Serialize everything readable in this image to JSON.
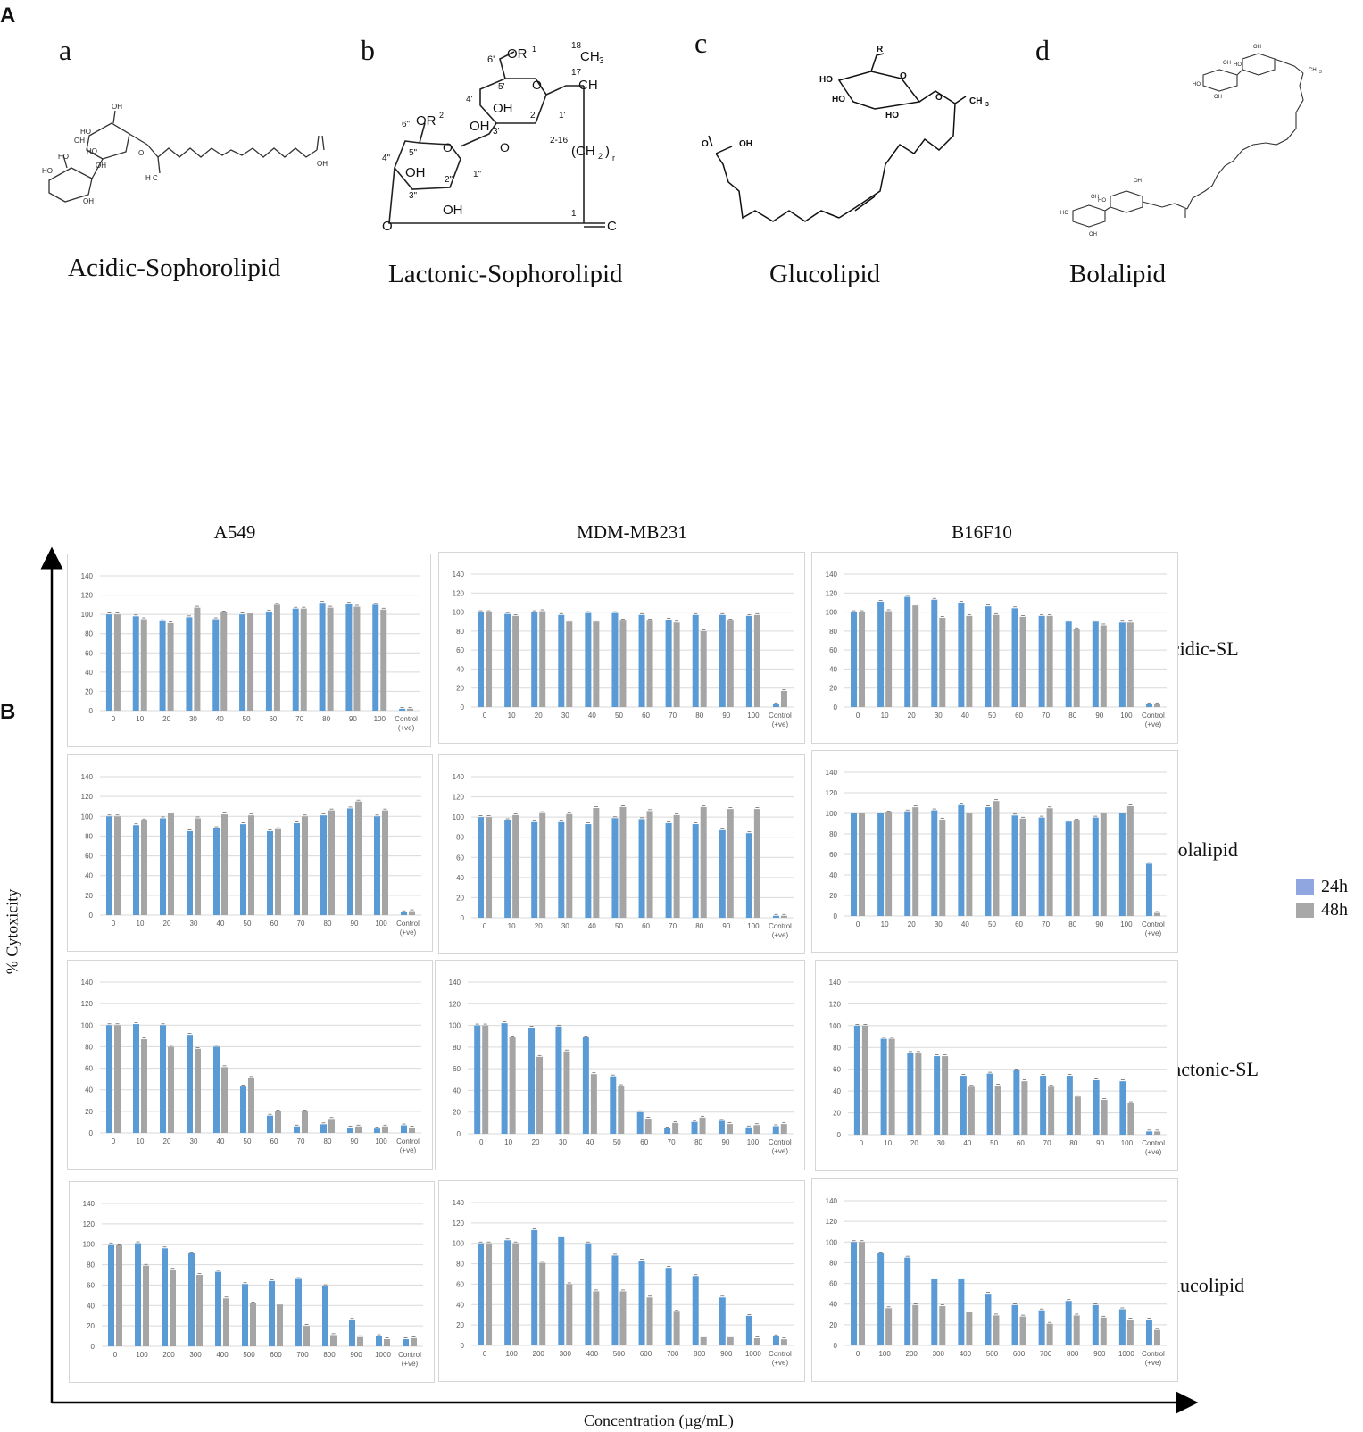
{
  "panel_labels": {
    "a": "A",
    "b": "B"
  },
  "structures": [
    {
      "letter": "a",
      "name": "Acidic-Sophorolipid"
    },
    {
      "letter": "b",
      "name": "Lactonic-Sophorolipid"
    },
    {
      "letter": "c",
      "name": "Glucolipid"
    },
    {
      "letter": "d",
      "name": "Bolalipid"
    }
  ],
  "structure_text": {
    "b_labels": [
      "6'",
      "OR",
      "1",
      "18",
      "CH",
      "3",
      "17",
      "CH",
      "O",
      "5'",
      "4'",
      "OH",
      "OH",
      "3'",
      "2'",
      "1'",
      "6\"",
      "OR",
      "2",
      "2-16",
      "(CH",
      "2",
      ")",
      "r",
      "4\"",
      "5\"",
      "OH",
      "O",
      "3\"",
      "2\"",
      "1\"",
      "OH",
      "O",
      "1",
      "C",
      "O"
    ],
    "c_labels": [
      "R",
      "HO",
      "O",
      "HO",
      "HO",
      "O",
      "CH",
      "3",
      "O",
      "OH"
    ],
    "a_labels": [
      "OH",
      "HO",
      "OH",
      "HO",
      "HO",
      "OH",
      "HO",
      "OH",
      "O",
      "H",
      "C",
      "OH"
    ],
    "d_labels": [
      "OH",
      "OH",
      "HO",
      "HO",
      "OH",
      "CH",
      "3",
      "OH",
      "OH",
      "HO",
      "HO",
      "OH"
    ]
  },
  "column_titles": [
    "A549",
    "MDM-MB231",
    "B16F10"
  ],
  "row_labels": [
    "Acidic-SL",
    "Bolalipid",
    "Lactonic-SL",
    "Glucolipid"
  ],
  "legend": [
    {
      "label": "24h",
      "color": "#8FA6E0"
    },
    {
      "label": "48h",
      "color": "#A8A8A8"
    }
  ],
  "axis_titles": {
    "y": "% Cytoxicity",
    "x": "Concentration (µg/mL)"
  },
  "colors": {
    "bar24": "#5B9BD5",
    "bar48": "#A5A5A5",
    "grid": "#D9D9D9",
    "tick": "#595959"
  },
  "chart_data": [
    {
      "type": "bar",
      "row": "Acidic-SL",
      "column": "A549",
      "title": "",
      "ylim": [
        0,
        140
      ],
      "yticks": [
        0,
        20,
        40,
        60,
        80,
        100,
        120,
        140
      ],
      "categories": [
        "0",
        "10",
        "20",
        "30",
        "40",
        "50",
        "60",
        "70",
        "80",
        "90",
        "100",
        "Control (+ve)"
      ],
      "series": [
        {
          "name": "24h",
          "values": [
            100,
            98,
            93,
            97,
            95,
            100,
            103,
            106,
            112,
            111,
            110,
            2
          ]
        },
        {
          "name": "48h",
          "values": [
            100,
            95,
            91,
            107,
            102,
            101,
            110,
            106,
            107,
            108,
            105,
            2
          ]
        }
      ]
    },
    {
      "type": "bar",
      "row": "Acidic-SL",
      "column": "MDM-MB231",
      "title": "",
      "ylim": [
        0,
        140
      ],
      "yticks": [
        0,
        20,
        40,
        60,
        80,
        100,
        120,
        140
      ],
      "categories": [
        "0",
        "10",
        "20",
        "30",
        "40",
        "50",
        "60",
        "70",
        "80",
        "90",
        "100",
        "Control (+ve)"
      ],
      "series": [
        {
          "name": "24h",
          "values": [
            100,
            98,
            100,
            97,
            99,
            99,
            97,
            92,
            97,
            97,
            96,
            3
          ]
        },
        {
          "name": "48h",
          "values": [
            100,
            96,
            101,
            90,
            90,
            91,
            91,
            89,
            80,
            91,
            97,
            17
          ]
        }
      ]
    },
    {
      "type": "bar",
      "row": "Acidic-SL",
      "column": "B16F10",
      "title": "",
      "ylim": [
        0,
        140
      ],
      "yticks": [
        0,
        20,
        40,
        60,
        80,
        100,
        120,
        140
      ],
      "categories": [
        "0",
        "10",
        "20",
        "30",
        "40",
        "50",
        "60",
        "70",
        "80",
        "90",
        "100",
        "Control (+ve)"
      ],
      "series": [
        {
          "name": "24h",
          "values": [
            100,
            111,
            116,
            113,
            110,
            106,
            104,
            96,
            90,
            90,
            89,
            3
          ]
        },
        {
          "name": "48h",
          "values": [
            100,
            101,
            107,
            94,
            96,
            97,
            95,
            96,
            82,
            86,
            89,
            3
          ]
        }
      ]
    },
    {
      "type": "bar",
      "row": "Bolalipid",
      "column": "A549",
      "title": "",
      "ylim": [
        0,
        140
      ],
      "yticks": [
        0,
        20,
        40,
        60,
        80,
        100,
        120,
        140
      ],
      "categories": [
        "0",
        "10",
        "20",
        "30",
        "40",
        "50",
        "60",
        "70",
        "80",
        "90",
        "100",
        "Control (+ve)"
      ],
      "series": [
        {
          "name": "24h",
          "values": [
            100,
            91,
            98,
            85,
            88,
            92,
            85,
            93,
            101,
            108,
            100,
            3
          ]
        },
        {
          "name": "48h",
          "values": [
            100,
            96,
            103,
            98,
            102,
            101,
            87,
            100,
            106,
            115,
            106,
            4
          ]
        }
      ]
    },
    {
      "type": "bar",
      "row": "Bolalipid",
      "column": "MDM-MB231",
      "title": "",
      "ylim": [
        0,
        140
      ],
      "yticks": [
        0,
        20,
        40,
        60,
        80,
        100,
        120,
        140
      ],
      "categories": [
        "0",
        "10",
        "20",
        "30",
        "40",
        "50",
        "60",
        "70",
        "80",
        "90",
        "100",
        "Control (+ve)"
      ],
      "series": [
        {
          "name": "24h",
          "values": [
            100,
            97,
            95,
            95,
            93,
            99,
            98,
            94,
            93,
            87,
            84,
            2
          ]
        },
        {
          "name": "48h",
          "values": [
            100,
            102,
            104,
            103,
            109,
            110,
            106,
            102,
            110,
            108,
            108,
            2
          ]
        }
      ]
    },
    {
      "type": "bar",
      "row": "Bolalipid",
      "column": "B16F10",
      "title": "",
      "ylim": [
        0,
        140
      ],
      "yticks": [
        0,
        20,
        40,
        60,
        80,
        100,
        120,
        140
      ],
      "categories": [
        "0",
        "10",
        "20",
        "30",
        "40",
        "50",
        "60",
        "70",
        "80",
        "90",
        "100",
        "Control (+ve)"
      ],
      "series": [
        {
          "name": "24h",
          "values": [
            100,
            100,
            102,
            103,
            108,
            106,
            98,
            96,
            92,
            96,
            100,
            51
          ]
        },
        {
          "name": "48h",
          "values": [
            100,
            101,
            106,
            94,
            100,
            112,
            95,
            105,
            93,
            100,
            107,
            3
          ]
        }
      ]
    },
    {
      "type": "bar",
      "row": "Lactonic-SL",
      "column": "A549",
      "title": "",
      "ylim": [
        0,
        140
      ],
      "yticks": [
        0,
        20,
        40,
        60,
        80,
        100,
        120,
        140
      ],
      "categories": [
        "0",
        "10",
        "20",
        "30",
        "40",
        "50",
        "60",
        "70",
        "80",
        "90",
        "100",
        "Control (+ve)"
      ],
      "series": [
        {
          "name": "24h",
          "values": [
            100,
            101,
            100,
            91,
            80,
            43,
            16,
            6,
            8,
            5,
            4,
            7
          ]
        },
        {
          "name": "48h",
          "values": [
            100,
            87,
            80,
            78,
            61,
            51,
            20,
            20,
            13,
            6,
            6,
            5
          ]
        }
      ]
    },
    {
      "type": "bar",
      "row": "Lactonic-SL",
      "column": "MDM-MB231",
      "title": "",
      "ylim": [
        0,
        140
      ],
      "yticks": [
        0,
        20,
        40,
        60,
        80,
        100,
        120,
        140
      ],
      "categories": [
        "0",
        "10",
        "20",
        "30",
        "40",
        "50",
        "60",
        "70",
        "80",
        "90",
        "100",
        "Control (+ve)"
      ],
      "series": [
        {
          "name": "24h",
          "values": [
            100,
            102,
            98,
            99,
            89,
            53,
            20,
            5,
            11,
            12,
            6,
            7
          ]
        },
        {
          "name": "48h",
          "values": [
            100,
            89,
            71,
            76,
            55,
            44,
            14,
            10,
            15,
            9,
            8,
            9
          ]
        }
      ]
    },
    {
      "type": "bar",
      "row": "Lactonic-SL",
      "column": "B16F10",
      "title": "",
      "ylim": [
        0,
        140
      ],
      "yticks": [
        0,
        20,
        40,
        60,
        80,
        100,
        120,
        140
      ],
      "categories": [
        "0",
        "10",
        "20",
        "30",
        "40",
        "50",
        "60",
        "70",
        "80",
        "90",
        "100",
        "Control (+ve)"
      ],
      "series": [
        {
          "name": "24h",
          "values": [
            100,
            88,
            75,
            72,
            54,
            56,
            59,
            54,
            54,
            50,
            49,
            3
          ]
        },
        {
          "name": "48h",
          "values": [
            100,
            88,
            75,
            72,
            44,
            45,
            49,
            44,
            35,
            32,
            29,
            3
          ]
        }
      ]
    },
    {
      "type": "bar",
      "row": "Glucolipid",
      "column": "A549",
      "title": "",
      "ylim": [
        0,
        140
      ],
      "yticks": [
        0,
        20,
        40,
        60,
        80,
        100,
        120,
        140
      ],
      "categories": [
        "0",
        "100",
        "200",
        "300",
        "400",
        "500",
        "600",
        "700",
        "800",
        "900",
        "1000",
        "Control (+ve)"
      ],
      "series": [
        {
          "name": "24h",
          "values": [
            100,
            101,
            96,
            91,
            73,
            61,
            64,
            66,
            59,
            26,
            10,
            7
          ]
        },
        {
          "name": "48h",
          "values": [
            99,
            79,
            75,
            70,
            47,
            42,
            41,
            20,
            11,
            9,
            7,
            8
          ]
        }
      ]
    },
    {
      "type": "bar",
      "row": "Glucolipid",
      "column": "MDM-MB231",
      "title": "",
      "ylim": [
        0,
        140
      ],
      "yticks": [
        0,
        20,
        40,
        60,
        80,
        100,
        120,
        140
      ],
      "categories": [
        "0",
        "100",
        "200",
        "300",
        "400",
        "500",
        "600",
        "700",
        "800",
        "900",
        "1000",
        "Control (+ve)"
      ],
      "series": [
        {
          "name": "24h",
          "values": [
            100,
            103,
            113,
            106,
            100,
            88,
            83,
            76,
            68,
            47,
            29,
            9
          ]
        },
        {
          "name": "48h",
          "values": [
            100,
            100,
            81,
            60,
            53,
            53,
            47,
            33,
            8,
            8,
            7,
            6
          ]
        }
      ]
    },
    {
      "type": "bar",
      "row": "Glucolipid",
      "column": "B16F10",
      "title": "",
      "ylim": [
        0,
        140
      ],
      "yticks": [
        0,
        20,
        40,
        60,
        80,
        100,
        120,
        140
      ],
      "categories": [
        "0",
        "100",
        "200",
        "300",
        "400",
        "500",
        "600",
        "700",
        "800",
        "900",
        "1000",
        "Control (+ve)"
      ],
      "series": [
        {
          "name": "24h",
          "values": [
            100,
            89,
            85,
            64,
            64,
            50,
            39,
            34,
            43,
            39,
            35,
            25
          ]
        },
        {
          "name": "48h",
          "values": [
            100,
            36,
            39,
            38,
            32,
            29,
            28,
            21,
            29,
            27,
            25,
            15
          ]
        }
      ]
    }
  ]
}
